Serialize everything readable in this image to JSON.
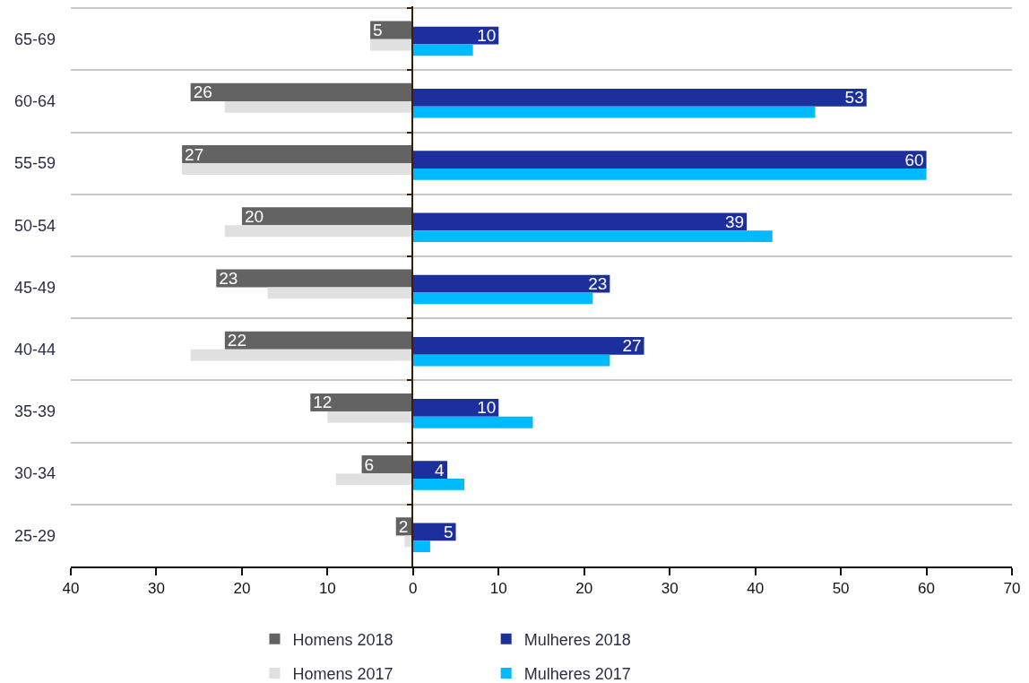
{
  "chart_data": [
    {
      "type": "bar",
      "orientation": "horizontal",
      "categories": [
        "65-69",
        "60-64",
        "55-59",
        "50-54",
        "45-49",
        "40-44",
        "35-39",
        "30-34",
        "25-29"
      ],
      "series": [
        {
          "name": "Homens 2018",
          "color": "#636363",
          "values": [
            5,
            26,
            27,
            20,
            23,
            22,
            12,
            6,
            2
          ],
          "value_labels": [
            "5",
            "26",
            "27",
            "20",
            "23",
            "22",
            "12",
            "6",
            "2"
          ]
        },
        {
          "name": "Homens 2017",
          "color": "#e0e0e0",
          "values": [
            5,
            22,
            27,
            22,
            17,
            26,
            10,
            9,
            1
          ]
        }
      ],
      "xlim": [
        40,
        0
      ],
      "xticks": [
        40,
        30,
        20,
        10
      ],
      "grid": "y",
      "legend": "bottom"
    },
    {
      "type": "bar",
      "orientation": "horizontal",
      "categories": [
        "65-69",
        "60-64",
        "55-59",
        "50-54",
        "45-49",
        "40-44",
        "35-39",
        "30-34",
        "25-29"
      ],
      "series": [
        {
          "name": "Mulheres 2018",
          "color": "#1c2f9c",
          "values": [
            10,
            53,
            60,
            39,
            23,
            27,
            10,
            4,
            5
          ],
          "value_labels": [
            "10",
            "53",
            "60",
            "39",
            "23",
            "27",
            "10",
            "4",
            "5"
          ]
        },
        {
          "name": "Mulheres 2017",
          "color": "#00baff",
          "values": [
            7,
            47,
            60,
            42,
            21,
            23,
            14,
            6,
            2
          ]
        }
      ],
      "xlim": [
        0,
        70
      ],
      "xticks": [
        0,
        10,
        20,
        30,
        40,
        50,
        60,
        70
      ],
      "grid": "y",
      "legend": "bottom",
      "tick_labels": "x"
    }
  ]
}
